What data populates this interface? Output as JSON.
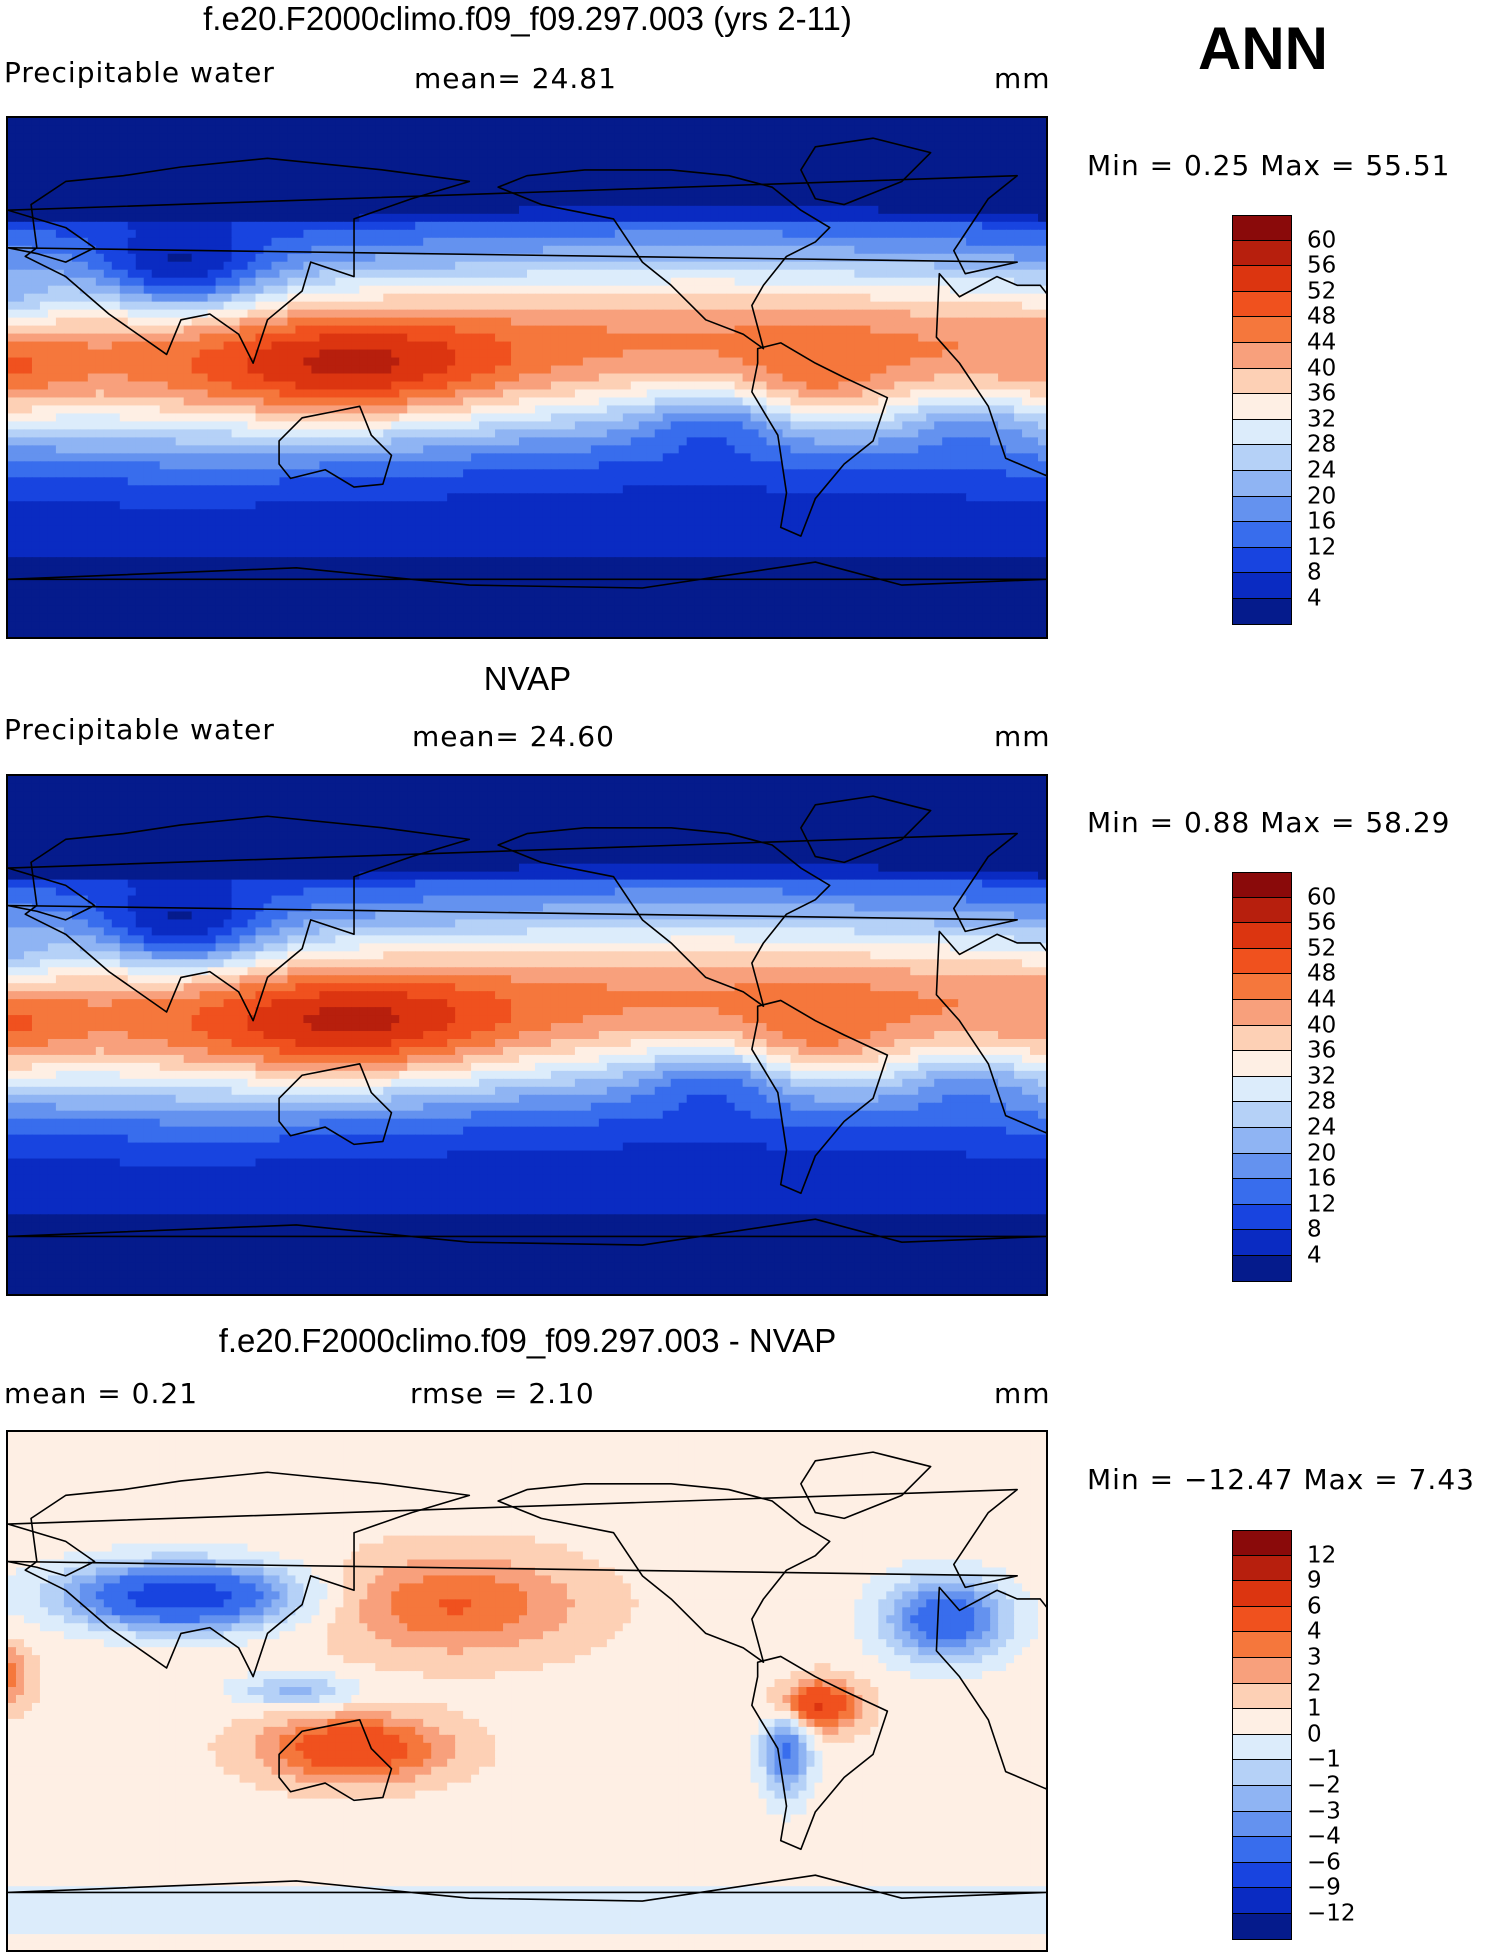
{
  "season": "ANN",
  "panels": [
    {
      "id": "model",
      "title": "f.e20.F2000climo.f09_f09.297.003 (yrs 2-11)",
      "left_label": "Precipitable water",
      "mid_label": "mean=   24.81",
      "right_label": "mm",
      "minmax": "Min =     0.25  Max  =    55.51",
      "field": "pw",
      "colorbar": {
        "colors": [
          "#8a0a0a",
          "#b71f0d",
          "#dc3510",
          "#f0511e",
          "#f5773c",
          "#f8a07c",
          "#fdd0b5",
          "#feefe4",
          "#dcecfb",
          "#b5d1f7",
          "#8fb4f3",
          "#6492ef",
          "#386ded",
          "#1844e0",
          "#0a2bc2",
          "#051b8c"
        ],
        "labels": [
          "60",
          "56",
          "52",
          "48",
          "44",
          "40",
          "36",
          "32",
          "28",
          "24",
          "20",
          "16",
          "12",
          "8",
          "4"
        ]
      }
    },
    {
      "id": "obs",
      "title": "NVAP",
      "left_label": "Precipitable water",
      "mid_label": "mean=   24.60",
      "right_label": "mm",
      "minmax": "Min =     0.88  Max  =    58.29",
      "field": "pw",
      "colorbar": {
        "colors": [
          "#8a0a0a",
          "#b71f0d",
          "#dc3510",
          "#f0511e",
          "#f5773c",
          "#f8a07c",
          "#fdd0b5",
          "#feefe4",
          "#dcecfb",
          "#b5d1f7",
          "#8fb4f3",
          "#6492ef",
          "#386ded",
          "#1844e0",
          "#0a2bc2",
          "#051b8c"
        ],
        "labels": [
          "60",
          "56",
          "52",
          "48",
          "44",
          "40",
          "36",
          "32",
          "28",
          "24",
          "20",
          "16",
          "12",
          "8",
          "4"
        ]
      }
    },
    {
      "id": "diff",
      "title": "f.e20.F2000climo.f09_f09.297.003 - NVAP",
      "left_label": "mean  =     0.21",
      "mid_label": "rmse  =     2.10",
      "right_label": "mm",
      "minmax": "Min  = −12.47  Max  =     7.43",
      "field": "diff",
      "colorbar": {
        "colors": [
          "#8a0a0a",
          "#b71f0d",
          "#dc3510",
          "#f0511e",
          "#f5773c",
          "#f8a07c",
          "#fdd0b5",
          "#feefe4",
          "#dcecfb",
          "#b5d1f7",
          "#8fb4f3",
          "#6492ef",
          "#386ded",
          "#1844e0",
          "#0a2bc2",
          "#051b8c"
        ],
        "labels": [
          "12",
          "9",
          "6",
          "4",
          "3",
          "2",
          "1",
          "0",
          "−1",
          "−2",
          "−3",
          "−4",
          "−6",
          "−9",
          "−12"
        ]
      }
    }
  ]
}
